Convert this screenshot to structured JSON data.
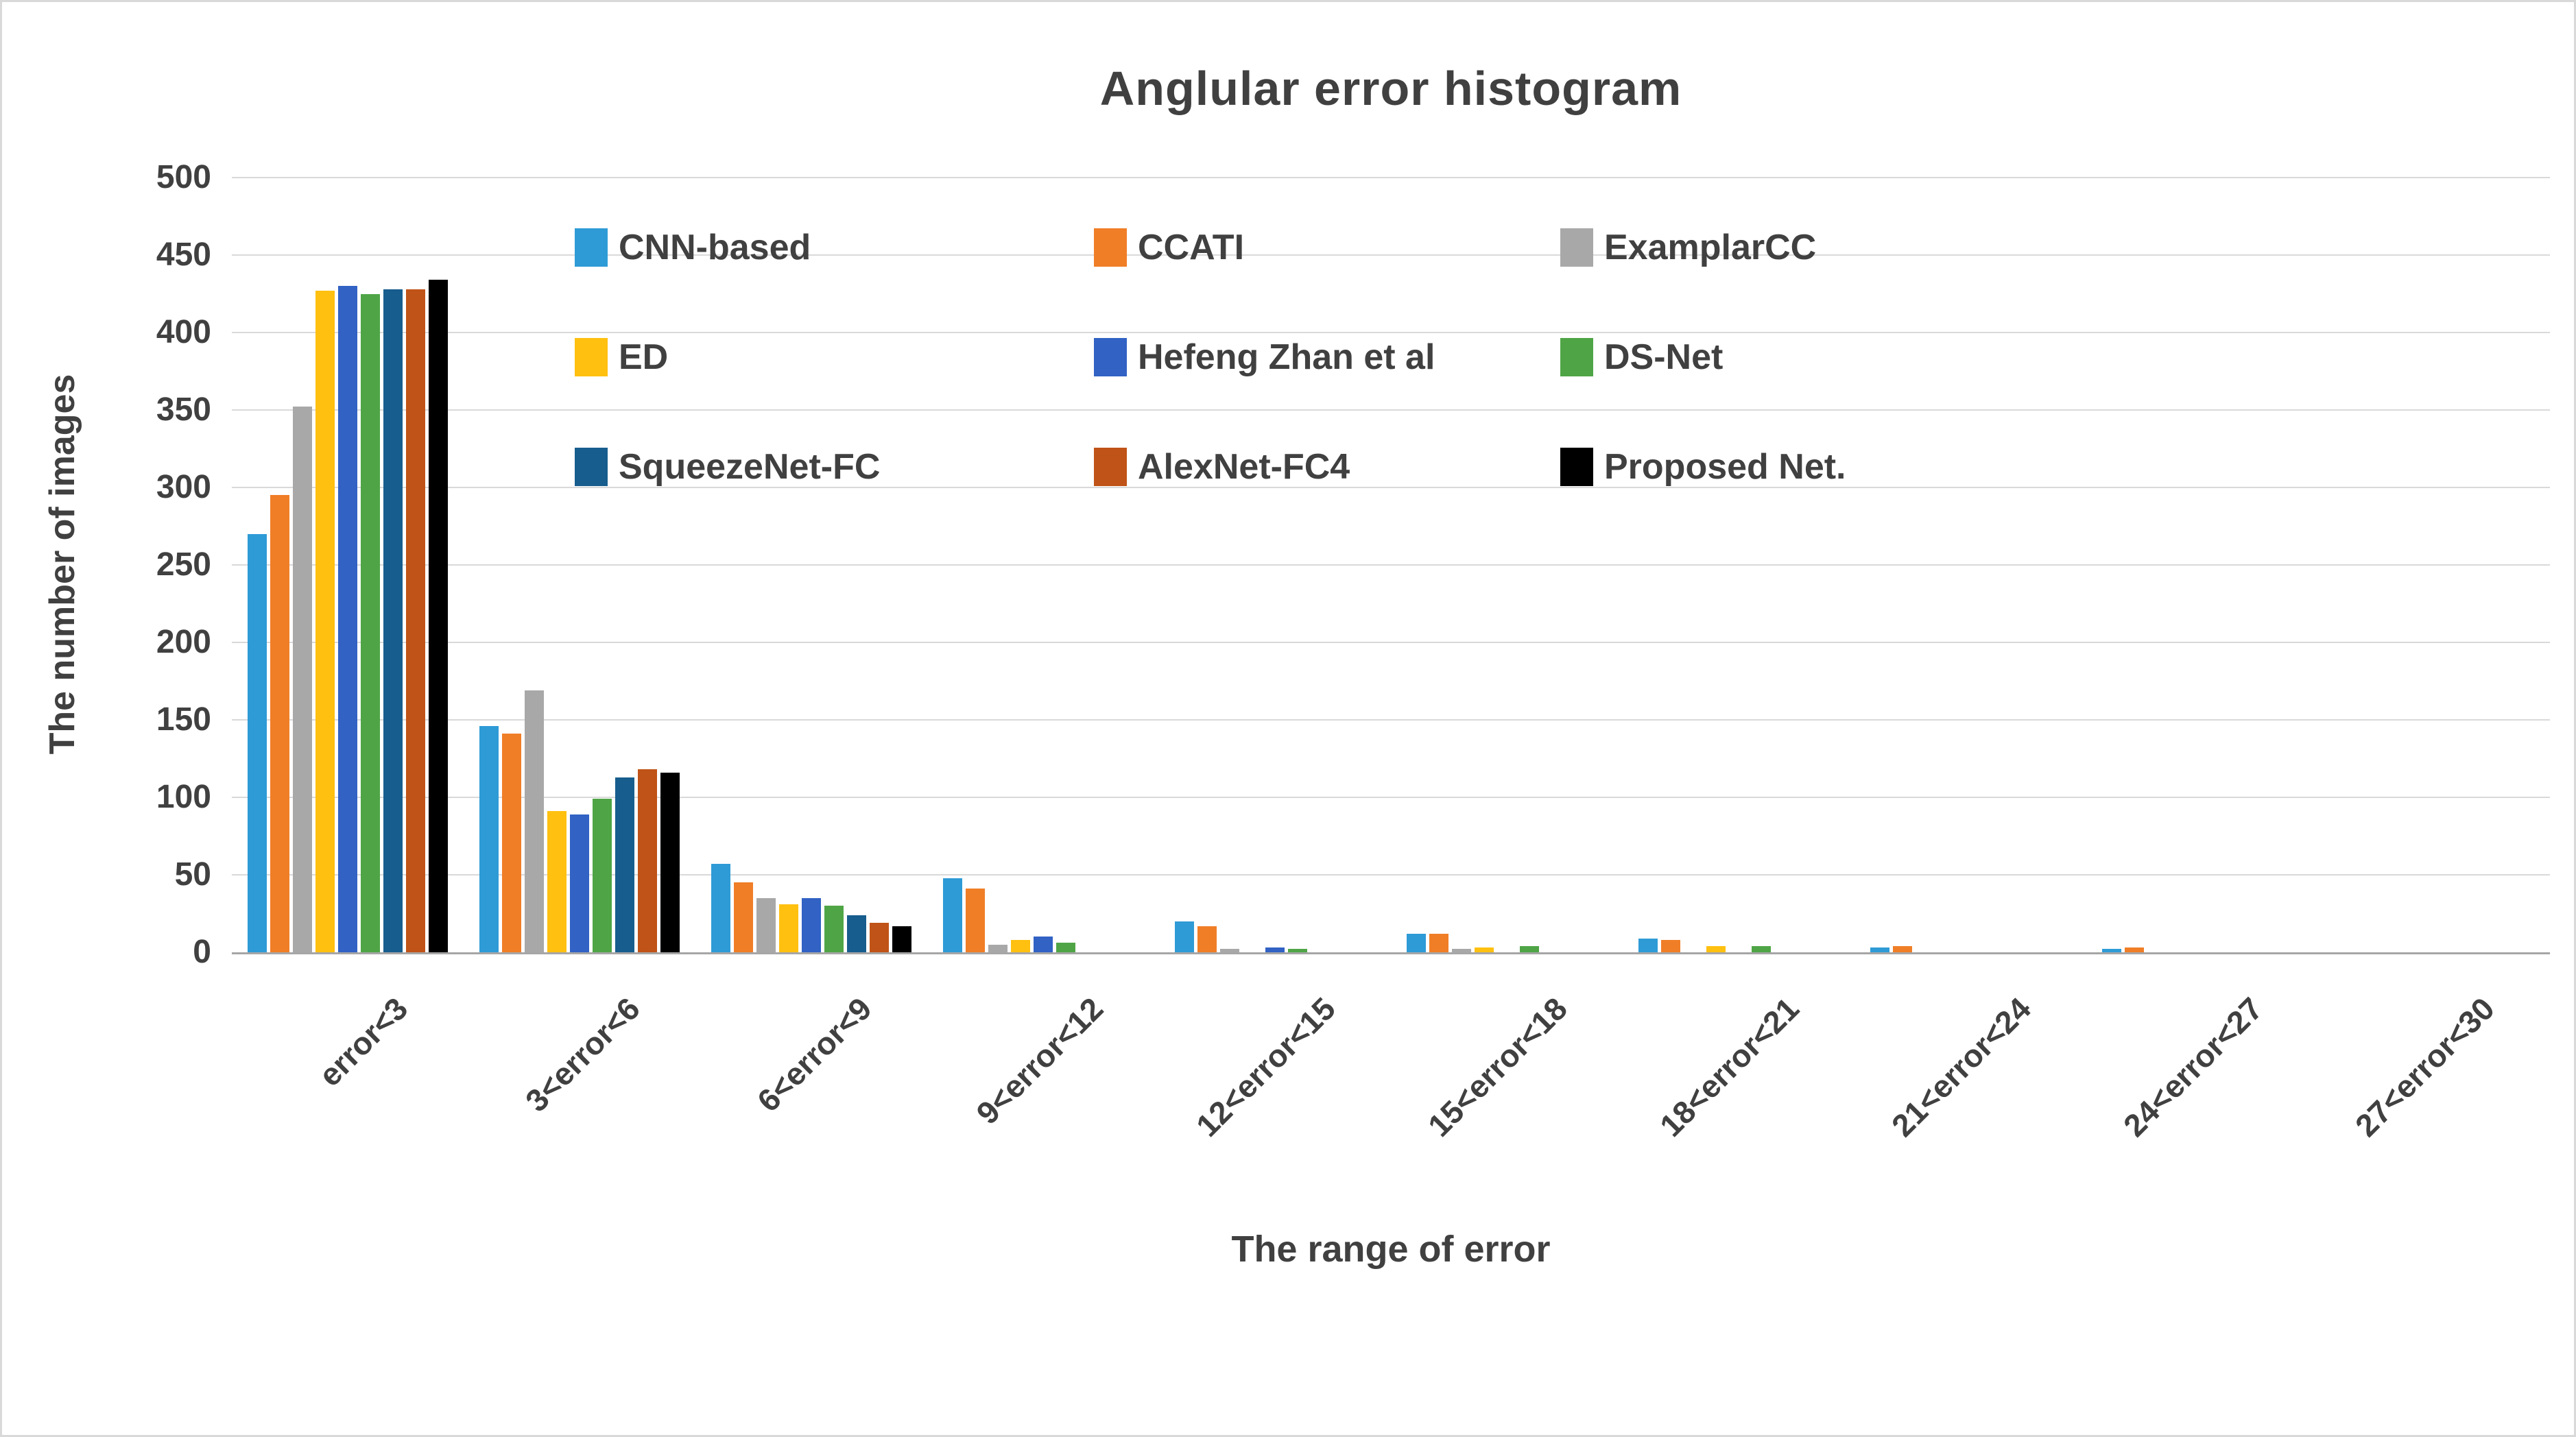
{
  "chart_data": {
    "type": "bar",
    "title": "Anglular error histogram",
    "xlabel": "The range of error",
    "ylabel": "The number of images",
    "ylim": [
      0,
      500
    ],
    "yticks": [
      0,
      50,
      100,
      150,
      200,
      250,
      300,
      350,
      400,
      450,
      500
    ],
    "grid": true,
    "legend_position": "inside-top-left",
    "categories": [
      "error<3",
      "3<error<6",
      "6<error<9",
      "9<error<12",
      "12<error<15",
      "15<error<18",
      "18<error<21",
      "21<error<24",
      "24<error<27",
      "27<error<30"
    ],
    "series": [
      {
        "name": "CNN-based",
        "color": "#2E9BD6",
        "values": [
          270,
          146,
          57,
          48,
          20,
          12,
          9,
          3,
          2,
          0
        ]
      },
      {
        "name": "CCATI",
        "color": "#F07E27",
        "values": [
          295,
          141,
          45,
          41,
          17,
          12,
          8,
          4,
          3,
          0
        ]
      },
      {
        "name": "ExamplarCC",
        "color": "#A8A8A8",
        "values": [
          352,
          169,
          35,
          5,
          2,
          2,
          0,
          0,
          0,
          0
        ]
      },
      {
        "name": "ED",
        "color": "#FFC010",
        "values": [
          427,
          91,
          31,
          8,
          0,
          3,
          4,
          0,
          0,
          0
        ]
      },
      {
        "name": "Hefeng Zhan et al",
        "color": "#3162C4",
        "values": [
          430,
          89,
          35,
          10,
          3,
          0,
          0,
          0,
          0,
          0
        ]
      },
      {
        "name": "DS-Net",
        "color": "#4FA546",
        "values": [
          425,
          99,
          30,
          6,
          2,
          4,
          4,
          0,
          0,
          0
        ]
      },
      {
        "name": "SqueezeNet-FC",
        "color": "#175D8D",
        "values": [
          428,
          113,
          24,
          0,
          0,
          0,
          0,
          0,
          0,
          0
        ]
      },
      {
        "name": "AlexNet-FC4",
        "color": "#C05317",
        "values": [
          428,
          118,
          19,
          0,
          0,
          0,
          0,
          0,
          0,
          0
        ]
      },
      {
        "name": "Proposed Net.",
        "color": "#000000",
        "values": [
          434,
          116,
          17,
          0,
          0,
          0,
          0,
          0,
          0,
          0
        ]
      }
    ]
  },
  "colors": {
    "text": "#404040",
    "gridline": "#D9D9D9",
    "axis_line": "#A6A6A6",
    "frame_border": "#D9D9D9",
    "background": "#FFFFFF"
  }
}
